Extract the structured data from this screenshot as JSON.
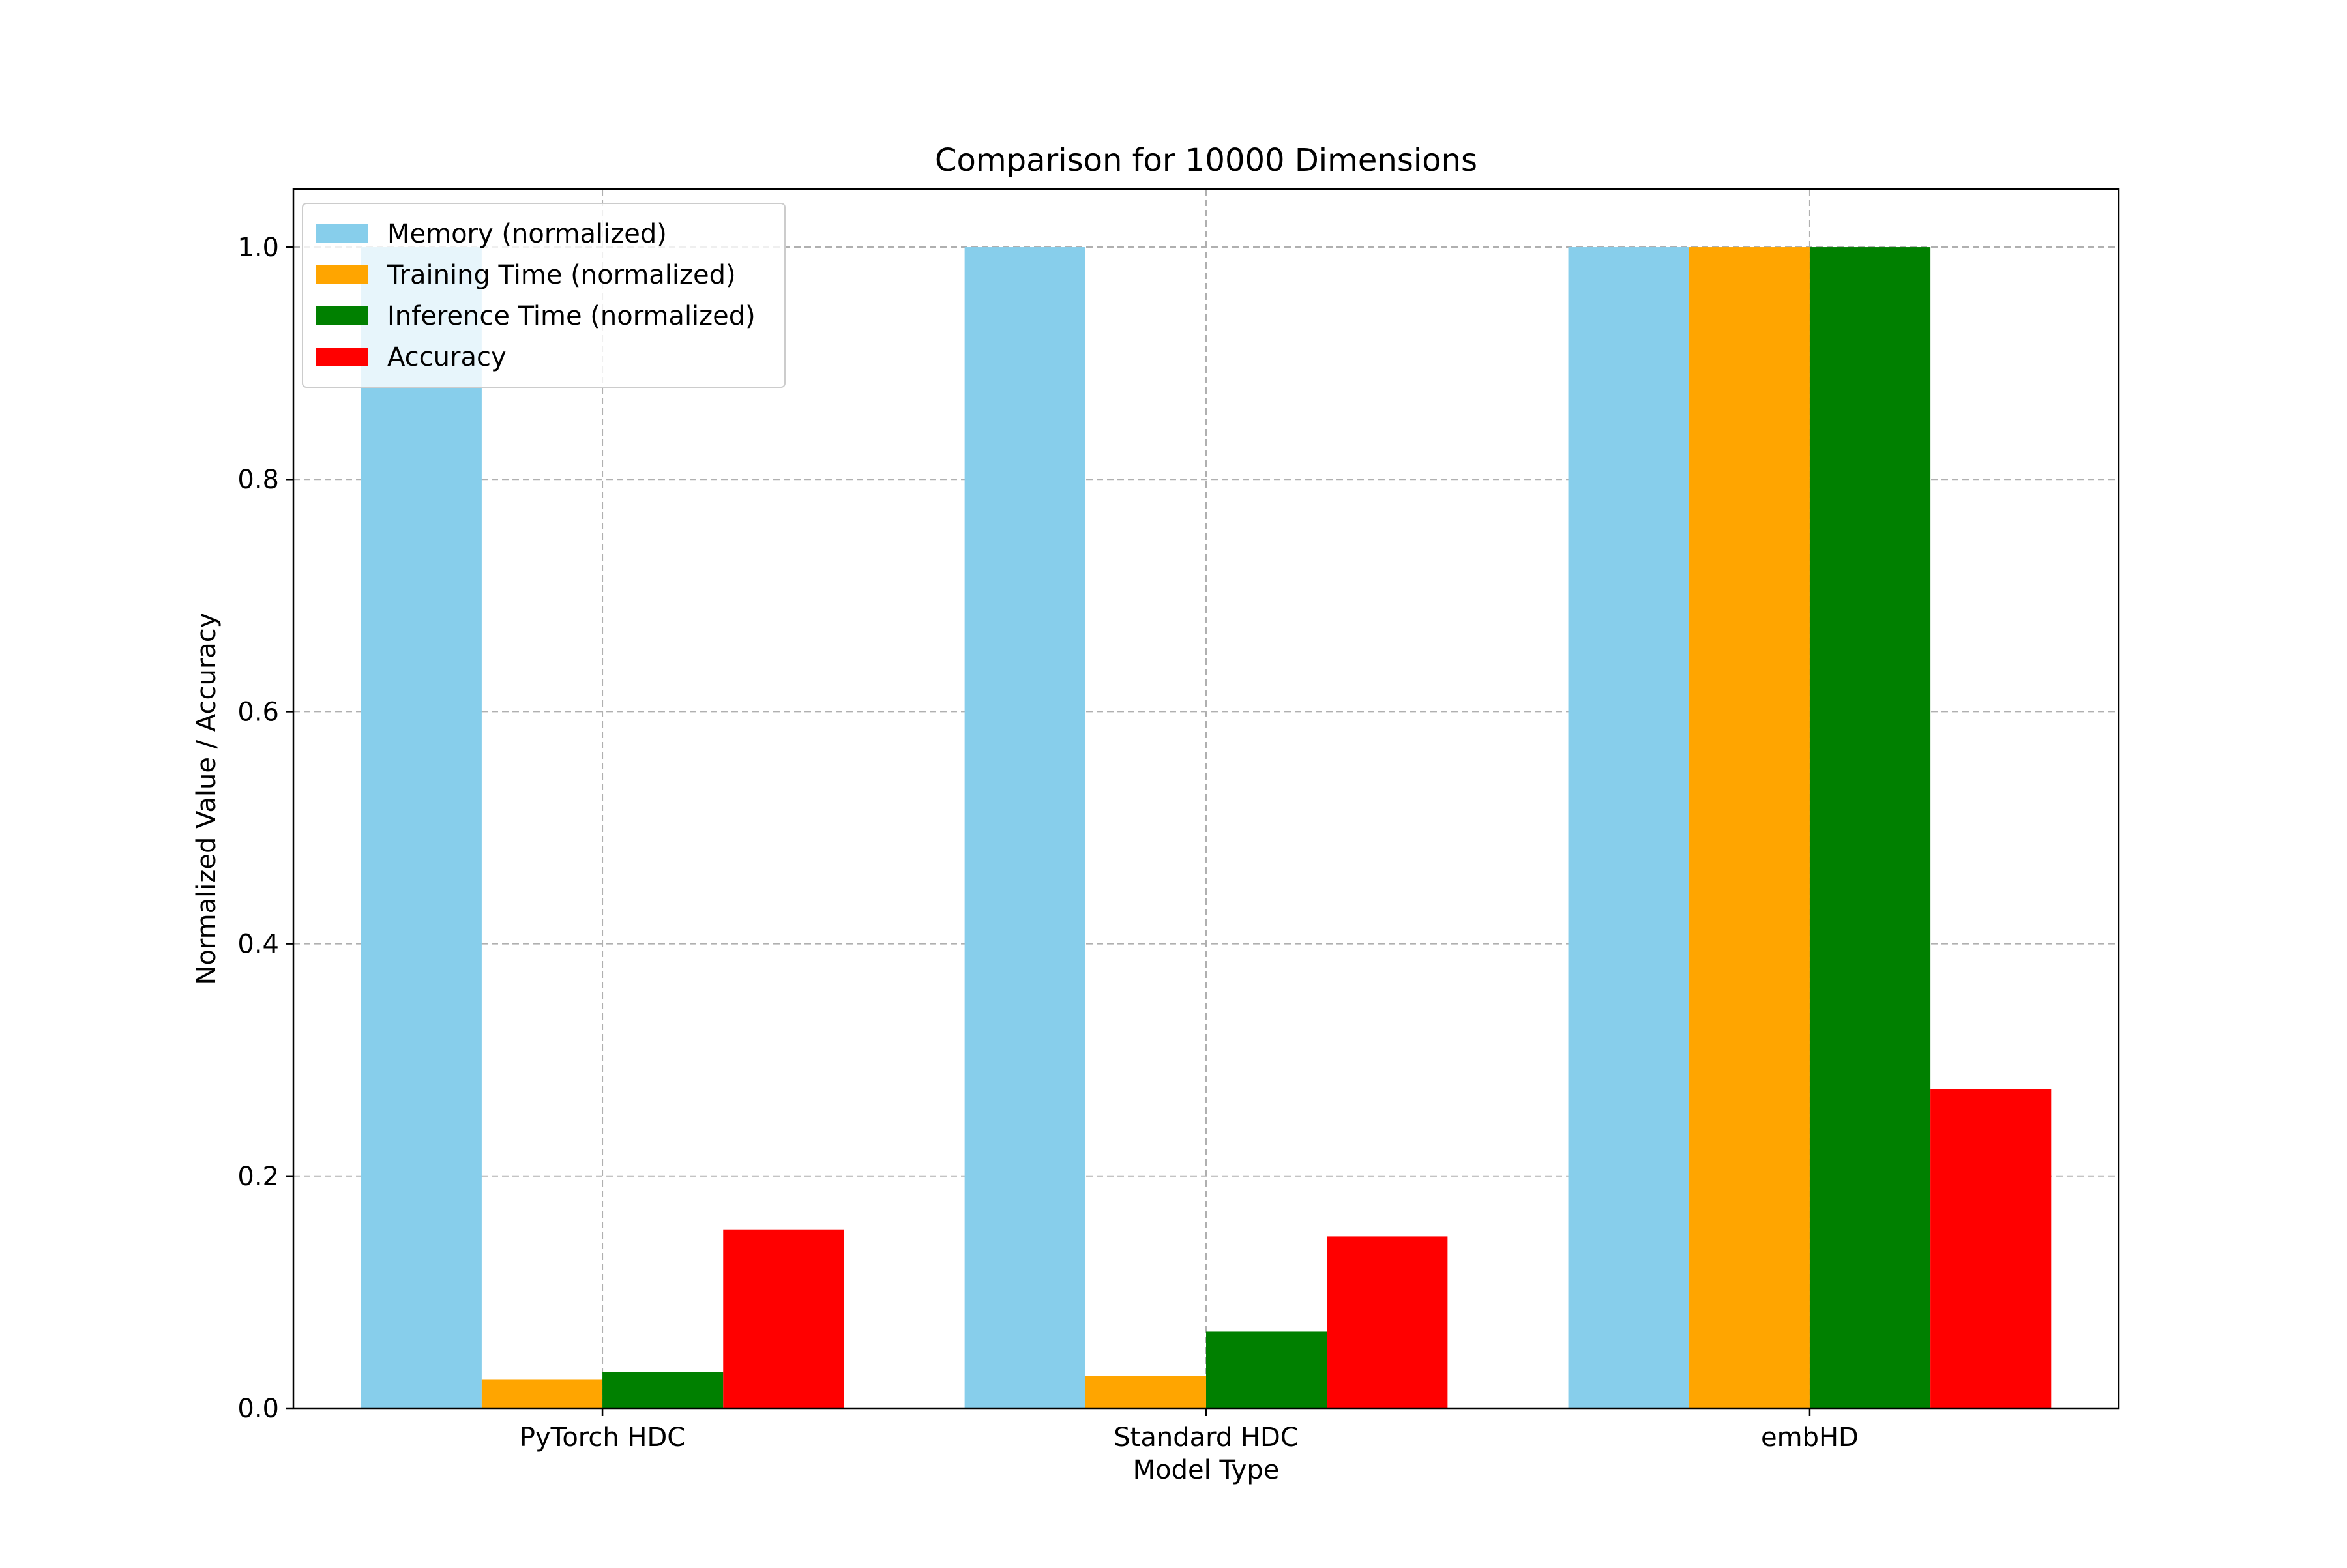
{
  "chart_data": {
    "type": "bar",
    "title": "Comparison for 10000 Dimensions",
    "xlabel": "Model Type",
    "ylabel": "Normalized Value / Accuracy",
    "categories": [
      "PyTorch HDC",
      "Standard HDC",
      "embHD"
    ],
    "series": [
      {
        "name": "Memory (normalized)",
        "color": "#87CEEB",
        "values": [
          1.0,
          1.0,
          1.0
        ]
      },
      {
        "name": "Training Time (normalized)",
        "color": "#FFA500",
        "values": [
          0.025,
          0.028,
          1.0
        ]
      },
      {
        "name": "Inference Time (normalized)",
        "color": "#008000",
        "values": [
          0.031,
          0.066,
          1.0
        ]
      },
      {
        "name": "Accuracy",
        "color": "#FF0000",
        "values": [
          0.154,
          0.148,
          0.275
        ]
      }
    ],
    "ylim": [
      0,
      1.05
    ],
    "yticks": [
      0.0,
      0.2,
      0.4,
      0.6,
      0.8,
      1.0
    ],
    "ytick_labels": [
      "0.0",
      "0.2",
      "0.4",
      "0.6",
      "0.8",
      "1.0"
    ],
    "grid": true,
    "legend_position": "top-left"
  }
}
